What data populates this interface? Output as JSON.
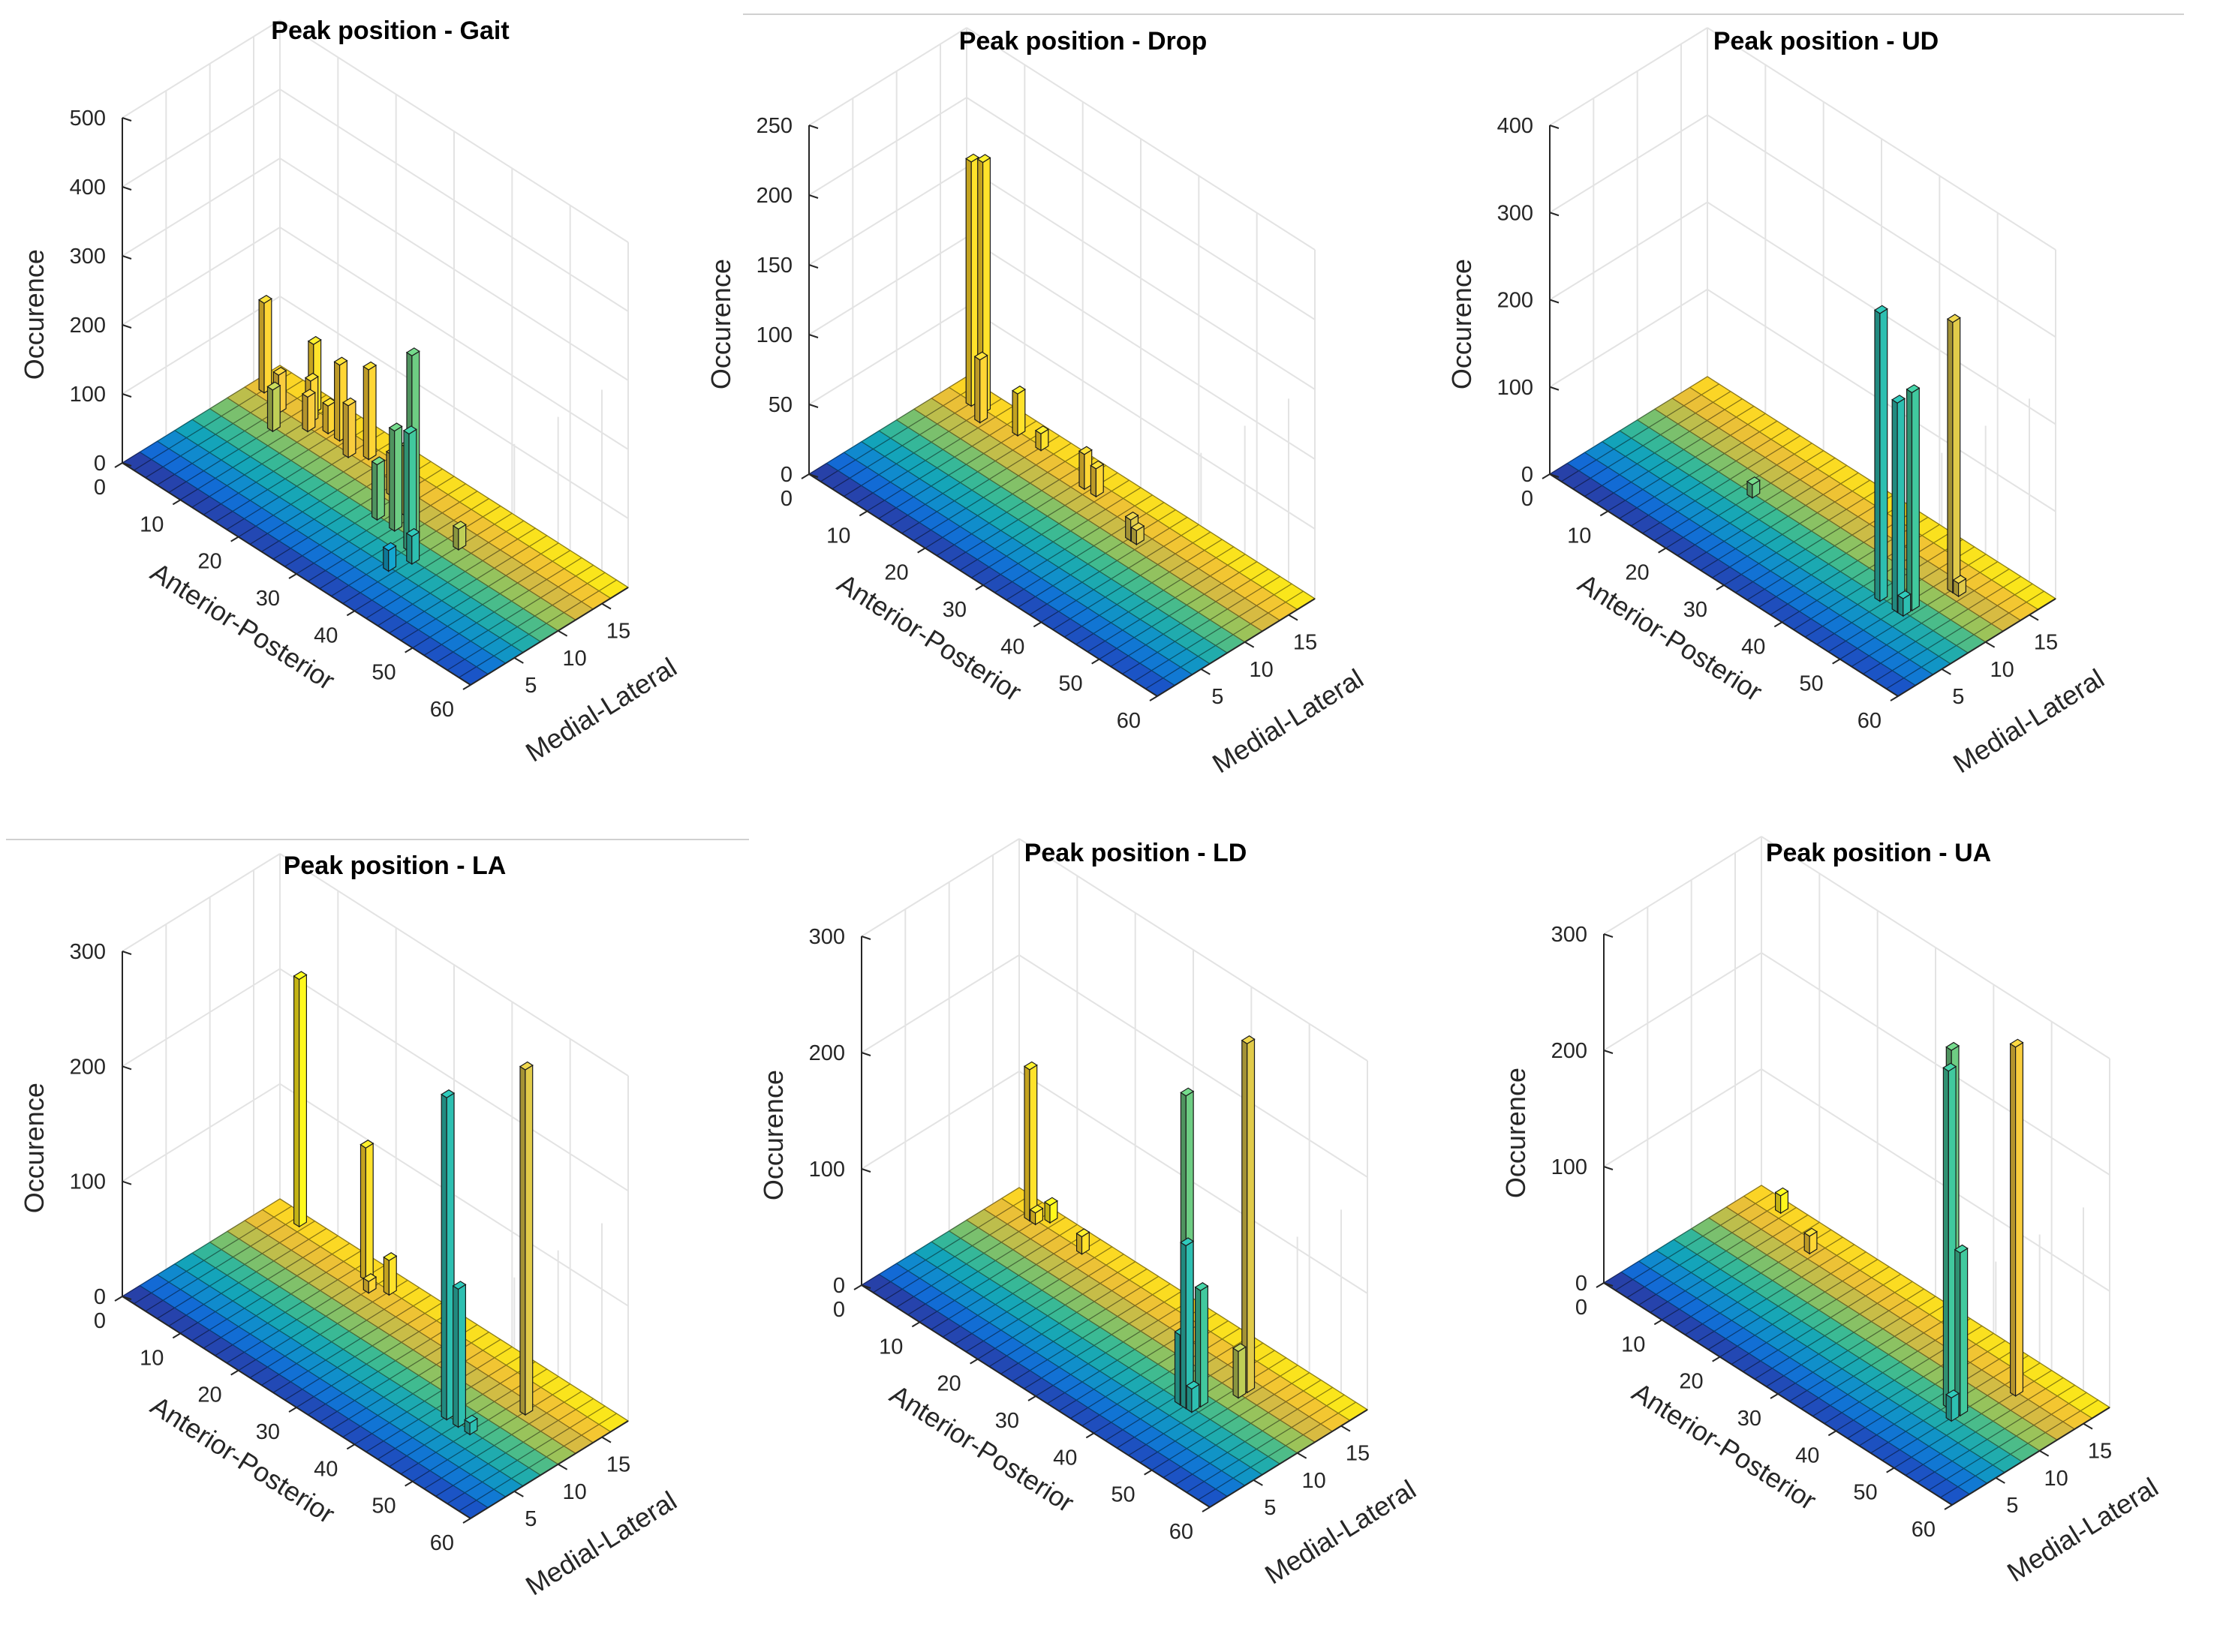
{
  "chart_data": [
    {
      "type": "bar3d",
      "title": "Peak position - Gait",
      "xlabel": "Anterior-Posterior",
      "ylabel": "Medial-Lateral",
      "zlabel": "Occurence",
      "xlim": [
        0,
        60
      ],
      "ylim": [
        0,
        18
      ],
      "zlim": [
        0,
        500
      ],
      "xticks": [
        "0",
        "10",
        "20",
        "30",
        "40",
        "50",
        "60"
      ],
      "yticks": [
        "5",
        "10",
        "15"
      ],
      "zticks": [
        "0",
        "100",
        "200",
        "300",
        "400",
        "500"
      ],
      "grid": true,
      "bars": [
        {
          "ap": 2,
          "ml": 15,
          "value": 130
        },
        {
          "ap": 6,
          "ml": 14,
          "value": 55
        },
        {
          "ap": 8,
          "ml": 12,
          "value": 60
        },
        {
          "ap": 9,
          "ml": 16,
          "value": 100
        },
        {
          "ap": 10,
          "ml": 15,
          "value": 60
        },
        {
          "ap": 11,
          "ml": 14,
          "value": 50
        },
        {
          "ap": 13,
          "ml": 15,
          "value": 40
        },
        {
          "ap": 15,
          "ml": 15,
          "value": 110
        },
        {
          "ap": 18,
          "ml": 14,
          "value": 75
        },
        {
          "ap": 20,
          "ml": 15,
          "value": 130
        },
        {
          "ap": 27,
          "ml": 13,
          "value": 60
        },
        {
          "ap": 29,
          "ml": 10,
          "value": 80
        },
        {
          "ap": 31,
          "ml": 12,
          "value": 100
        },
        {
          "ap": 32,
          "ml": 10,
          "value": 145
        },
        {
          "ap": 35,
          "ml": 10,
          "value": 270
        },
        {
          "ap": 36,
          "ml": 9,
          "value": 170
        },
        {
          "ap": 37,
          "ml": 6,
          "value": 30
        },
        {
          "ap": 38,
          "ml": 8,
          "value": 40
        },
        {
          "ap": 40,
          "ml": 12,
          "value": 30
        }
      ]
    },
    {
      "type": "bar3d",
      "title": "Peak position - Drop",
      "xlabel": "Anterior-Posterior",
      "ylabel": "Medial-Lateral",
      "zlabel": "Occurence",
      "xlim": [
        0,
        60
      ],
      "ylim": [
        0,
        18
      ],
      "zlim": [
        0,
        250
      ],
      "xticks": [
        "0",
        "10",
        "20",
        "30",
        "40",
        "50",
        "60"
      ],
      "yticks": [
        "5",
        "10",
        "15"
      ],
      "zticks": [
        "0",
        "50",
        "100",
        "150",
        "200",
        "250"
      ],
      "grid": true,
      "bars": [
        {
          "ap": 4,
          "ml": 16,
          "value": 175
        },
        {
          "ap": 6,
          "ml": 16,
          "value": 180
        },
        {
          "ap": 7,
          "ml": 15,
          "value": 45
        },
        {
          "ap": 12,
          "ml": 16,
          "value": 30
        },
        {
          "ap": 16,
          "ml": 16,
          "value": 12
        },
        {
          "ap": 25,
          "ml": 15,
          "value": 25
        },
        {
          "ap": 27,
          "ml": 15,
          "value": 20
        },
        {
          "ap": 36,
          "ml": 13,
          "value": 15
        },
        {
          "ap": 37,
          "ml": 13,
          "value": 10
        }
      ]
    },
    {
      "type": "bar3d",
      "title": "Peak position - UD",
      "xlabel": "Anterior-Posterior",
      "ylabel": "Medial-Lateral",
      "zlabel": "Occurence",
      "xlim": [
        0,
        60
      ],
      "ylim": [
        0,
        18
      ],
      "zlim": [
        0,
        400
      ],
      "xticks": [
        "0",
        "10",
        "20",
        "30",
        "40",
        "50",
        "60"
      ],
      "yticks": [
        "5",
        "10",
        "15"
      ],
      "zticks": [
        "0",
        "100",
        "200",
        "300",
        "400"
      ],
      "grid": true,
      "bars": [
        {
          "ap": 20,
          "ml": 10,
          "value": 15
        },
        {
          "ap": 45,
          "ml": 8,
          "value": 330
        },
        {
          "ap": 48,
          "ml": 8,
          "value": 240
        },
        {
          "ap": 49,
          "ml": 9,
          "value": 250
        },
        {
          "ap": 49,
          "ml": 8,
          "value": 20
        },
        {
          "ap": 50,
          "ml": 13,
          "value": 310
        },
        {
          "ap": 51,
          "ml": 13,
          "value": 15
        }
      ]
    },
    {
      "type": "bar3d",
      "title": "Peak position - LA",
      "xlabel": "Anterior-Posterior",
      "ylabel": "Medial-Lateral",
      "zlabel": "Occurence",
      "xlim": [
        0,
        60
      ],
      "ylim": [
        0,
        18
      ],
      "zlim": [
        0,
        300
      ],
      "xticks": [
        "0",
        "10",
        "20",
        "30",
        "40",
        "50",
        "60"
      ],
      "yticks": [
        "5",
        "10",
        "15"
      ],
      "zticks": [
        "0",
        "100",
        "200",
        "300"
      ],
      "grid": true,
      "bars": [
        {
          "ap": 5,
          "ml": 17,
          "value": 215
        },
        {
          "ap": 18,
          "ml": 16,
          "value": 115
        },
        {
          "ap": 20,
          "ml": 15,
          "value": 10
        },
        {
          "ap": 22,
          "ml": 16,
          "value": 30
        },
        {
          "ap": 44,
          "ml": 8,
          "value": 280
        },
        {
          "ap": 46,
          "ml": 8,
          "value": 120
        },
        {
          "ap": 48,
          "ml": 8,
          "value": 10
        },
        {
          "ap": 50,
          "ml": 13,
          "value": 310
        }
      ]
    },
    {
      "type": "bar3d",
      "title": "Peak position - LD",
      "xlabel": "Anterior-Posterior",
      "ylabel": "Medial-Lateral",
      "zlabel": "Occurence",
      "xlim": [
        0,
        60
      ],
      "ylim": [
        0,
        18
      ],
      "zlim": [
        0,
        300
      ],
      "xticks": [
        "0",
        "10",
        "20",
        "30",
        "40",
        "50",
        "60"
      ],
      "yticks": [
        "5",
        "10",
        "15"
      ],
      "zticks": [
        "0",
        "100",
        "200",
        "300"
      ],
      "grid": true,
      "bars": [
        {
          "ap": 5,
          "ml": 16,
          "value": 130
        },
        {
          "ap": 6,
          "ml": 16,
          "value": 10
        },
        {
          "ap": 7,
          "ml": 17,
          "value": 15
        },
        {
          "ap": 14,
          "ml": 16,
          "value": 15
        },
        {
          "ap": 41,
          "ml": 10,
          "value": 250
        },
        {
          "ap": 43,
          "ml": 8,
          "value": 60
        },
        {
          "ap": 44,
          "ml": 8,
          "value": 140
        },
        {
          "ap": 45,
          "ml": 9,
          "value": 100
        },
        {
          "ap": 45,
          "ml": 8,
          "value": 20
        },
        {
          "ap": 47,
          "ml": 13,
          "value": 300
        },
        {
          "ap": 47,
          "ml": 12,
          "value": 40
        }
      ]
    },
    {
      "type": "bar3d",
      "title": "Peak position - UA",
      "xlabel": "Anterior-Posterior",
      "ylabel": "Medial-Lateral",
      "zlabel": "Occurence",
      "xlim": [
        0,
        60
      ],
      "ylim": [
        0,
        18
      ],
      "zlim": [
        0,
        300
      ],
      "xticks": [
        "0",
        "10",
        "20",
        "30",
        "40",
        "50",
        "60"
      ],
      "yticks": [
        "5",
        "10",
        "15"
      ],
      "zticks": [
        "0",
        "100",
        "200",
        "300"
      ],
      "grid": true,
      "bars": [
        {
          "ap": 5,
          "ml": 17,
          "value": 15
        },
        {
          "ap": 13,
          "ml": 15,
          "value": 15
        },
        {
          "ap": 45,
          "ml": 10,
          "value": 300
        },
        {
          "ap": 46,
          "ml": 9,
          "value": 290
        },
        {
          "ap": 48,
          "ml": 9,
          "value": 140
        },
        {
          "ap": 48,
          "ml": 8,
          "value": 20
        },
        {
          "ap": 50,
          "ml": 14,
          "value": 330
        }
      ]
    }
  ]
}
